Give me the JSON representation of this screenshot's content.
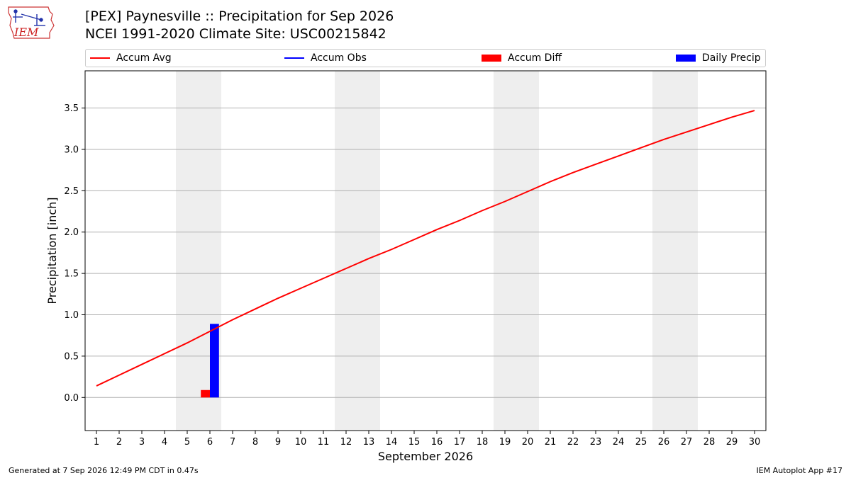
{
  "header": {
    "title_line1": "[PEX] Paynesville :: Precipitation for Sep 2026",
    "title_line2": "NCEI 1991-2020 Climate Site: USC00215842",
    "logo_text": "IEM"
  },
  "legend": {
    "items": [
      {
        "label": "Accum Avg",
        "color": "#ff0000",
        "kind": "line"
      },
      {
        "label": "Accum Obs",
        "color": "#0000ff",
        "kind": "line"
      },
      {
        "label": "Accum Diff",
        "color": "#ff0000",
        "kind": "box"
      },
      {
        "label": "Daily Precip",
        "color": "#0000ff",
        "kind": "box"
      }
    ]
  },
  "footer": {
    "generated": "Generated at 7 Sep 2026 12:49 PM CDT in 0.47s",
    "app": "IEM Autoplot App #17"
  },
  "chart_data": {
    "type": "line",
    "xlabel": "September 2026",
    "ylabel": "Precipitation [inch]",
    "xlim": [
      0.5,
      30.5
    ],
    "ylim": [
      -0.4,
      3.95
    ],
    "x_ticks": [
      1,
      2,
      3,
      4,
      5,
      6,
      7,
      8,
      9,
      10,
      11,
      12,
      13,
      14,
      15,
      16,
      17,
      18,
      19,
      20,
      21,
      22,
      23,
      24,
      25,
      26,
      27,
      28,
      29,
      30
    ],
    "y_ticks": [
      0.0,
      0.5,
      1.0,
      1.5,
      2.0,
      2.5,
      3.0,
      3.5
    ],
    "y_tick_labels": [
      "0.0",
      "0.5",
      "1.0",
      "1.5",
      "2.0",
      "2.5",
      "3.0",
      "3.5"
    ],
    "grid": "y",
    "weekend_shading": [
      [
        4.5,
        6.5
      ],
      [
        11.5,
        13.5
      ],
      [
        18.5,
        20.5
      ],
      [
        25.5,
        27.5
      ]
    ],
    "shade_color": "#eeeeee",
    "series": [
      {
        "name": "Accum Avg",
        "kind": "line",
        "color": "#ff0000",
        "x": [
          1,
          2,
          3,
          4,
          5,
          6,
          7,
          8,
          9,
          10,
          11,
          12,
          13,
          14,
          15,
          16,
          17,
          18,
          19,
          20,
          21,
          22,
          23,
          24,
          25,
          26,
          27,
          28,
          29,
          30
        ],
        "values": [
          0.14,
          0.27,
          0.4,
          0.53,
          0.66,
          0.8,
          0.94,
          1.07,
          1.2,
          1.32,
          1.44,
          1.56,
          1.68,
          1.79,
          1.91,
          2.03,
          2.14,
          2.26,
          2.37,
          2.49,
          2.61,
          2.72,
          2.82,
          2.92,
          3.02,
          3.12,
          3.21,
          3.3,
          3.39,
          3.47
        ]
      },
      {
        "name": "Accum Diff",
        "kind": "bar",
        "color": "#ff0000",
        "x": [
          6
        ],
        "values": [
          0.09
        ]
      },
      {
        "name": "Daily Precip",
        "kind": "bar",
        "color": "#0000ff",
        "x": [
          6
        ],
        "values": [
          0.89
        ]
      }
    ]
  }
}
